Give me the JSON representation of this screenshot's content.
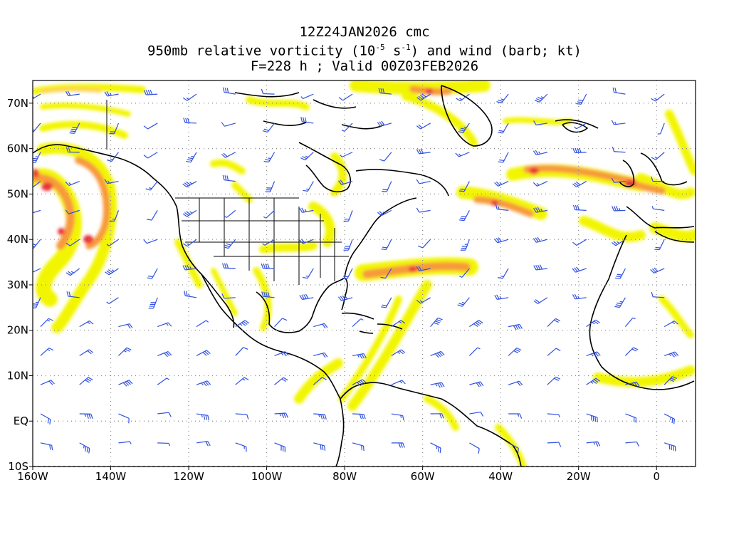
{
  "title": {
    "line1": "12Z24JAN2026 cmc",
    "line2_pre": "950mb relative vorticity (10",
    "line2_sup1": "-5",
    "line2_mid": " s",
    "line2_sup2": "-1",
    "line2_post": ") and wind (barb; kt)",
    "line3": "F=228 h ; Valid 00Z03FEB2026"
  },
  "map": {
    "lon_range": [
      -160,
      10
    ],
    "lat_range": [
      -10,
      75
    ],
    "lon_ticks": [
      {
        "value": -160,
        "label": "160W"
      },
      {
        "value": -140,
        "label": "140W"
      },
      {
        "value": -120,
        "label": "120W"
      },
      {
        "value": -100,
        "label": "100W"
      },
      {
        "value": -80,
        "label": "80W"
      },
      {
        "value": -60,
        "label": "60W"
      },
      {
        "value": -40,
        "label": "40W"
      },
      {
        "value": -20,
        "label": "20W"
      },
      {
        "value": 0,
        "label": "0"
      }
    ],
    "lat_ticks": [
      {
        "value": 70,
        "label": "70N"
      },
      {
        "value": 60,
        "label": "60N"
      },
      {
        "value": 50,
        "label": "50N"
      },
      {
        "value": 40,
        "label": "40N"
      },
      {
        "value": 30,
        "label": "30N"
      },
      {
        "value": 20,
        "label": "20N"
      },
      {
        "value": 10,
        "label": "10N"
      },
      {
        "value": 0,
        "label": "EQ"
      },
      {
        "value": -10,
        "label": "10S"
      }
    ],
    "colors": {
      "barb": "#3050e0",
      "grid": "#888888",
      "coast": "#000000",
      "vort_low": "#f2f500",
      "vort_mid": "#ffd24a",
      "vort_high": "#f79a3a",
      "vort_max": "#e8303a"
    }
  }
}
